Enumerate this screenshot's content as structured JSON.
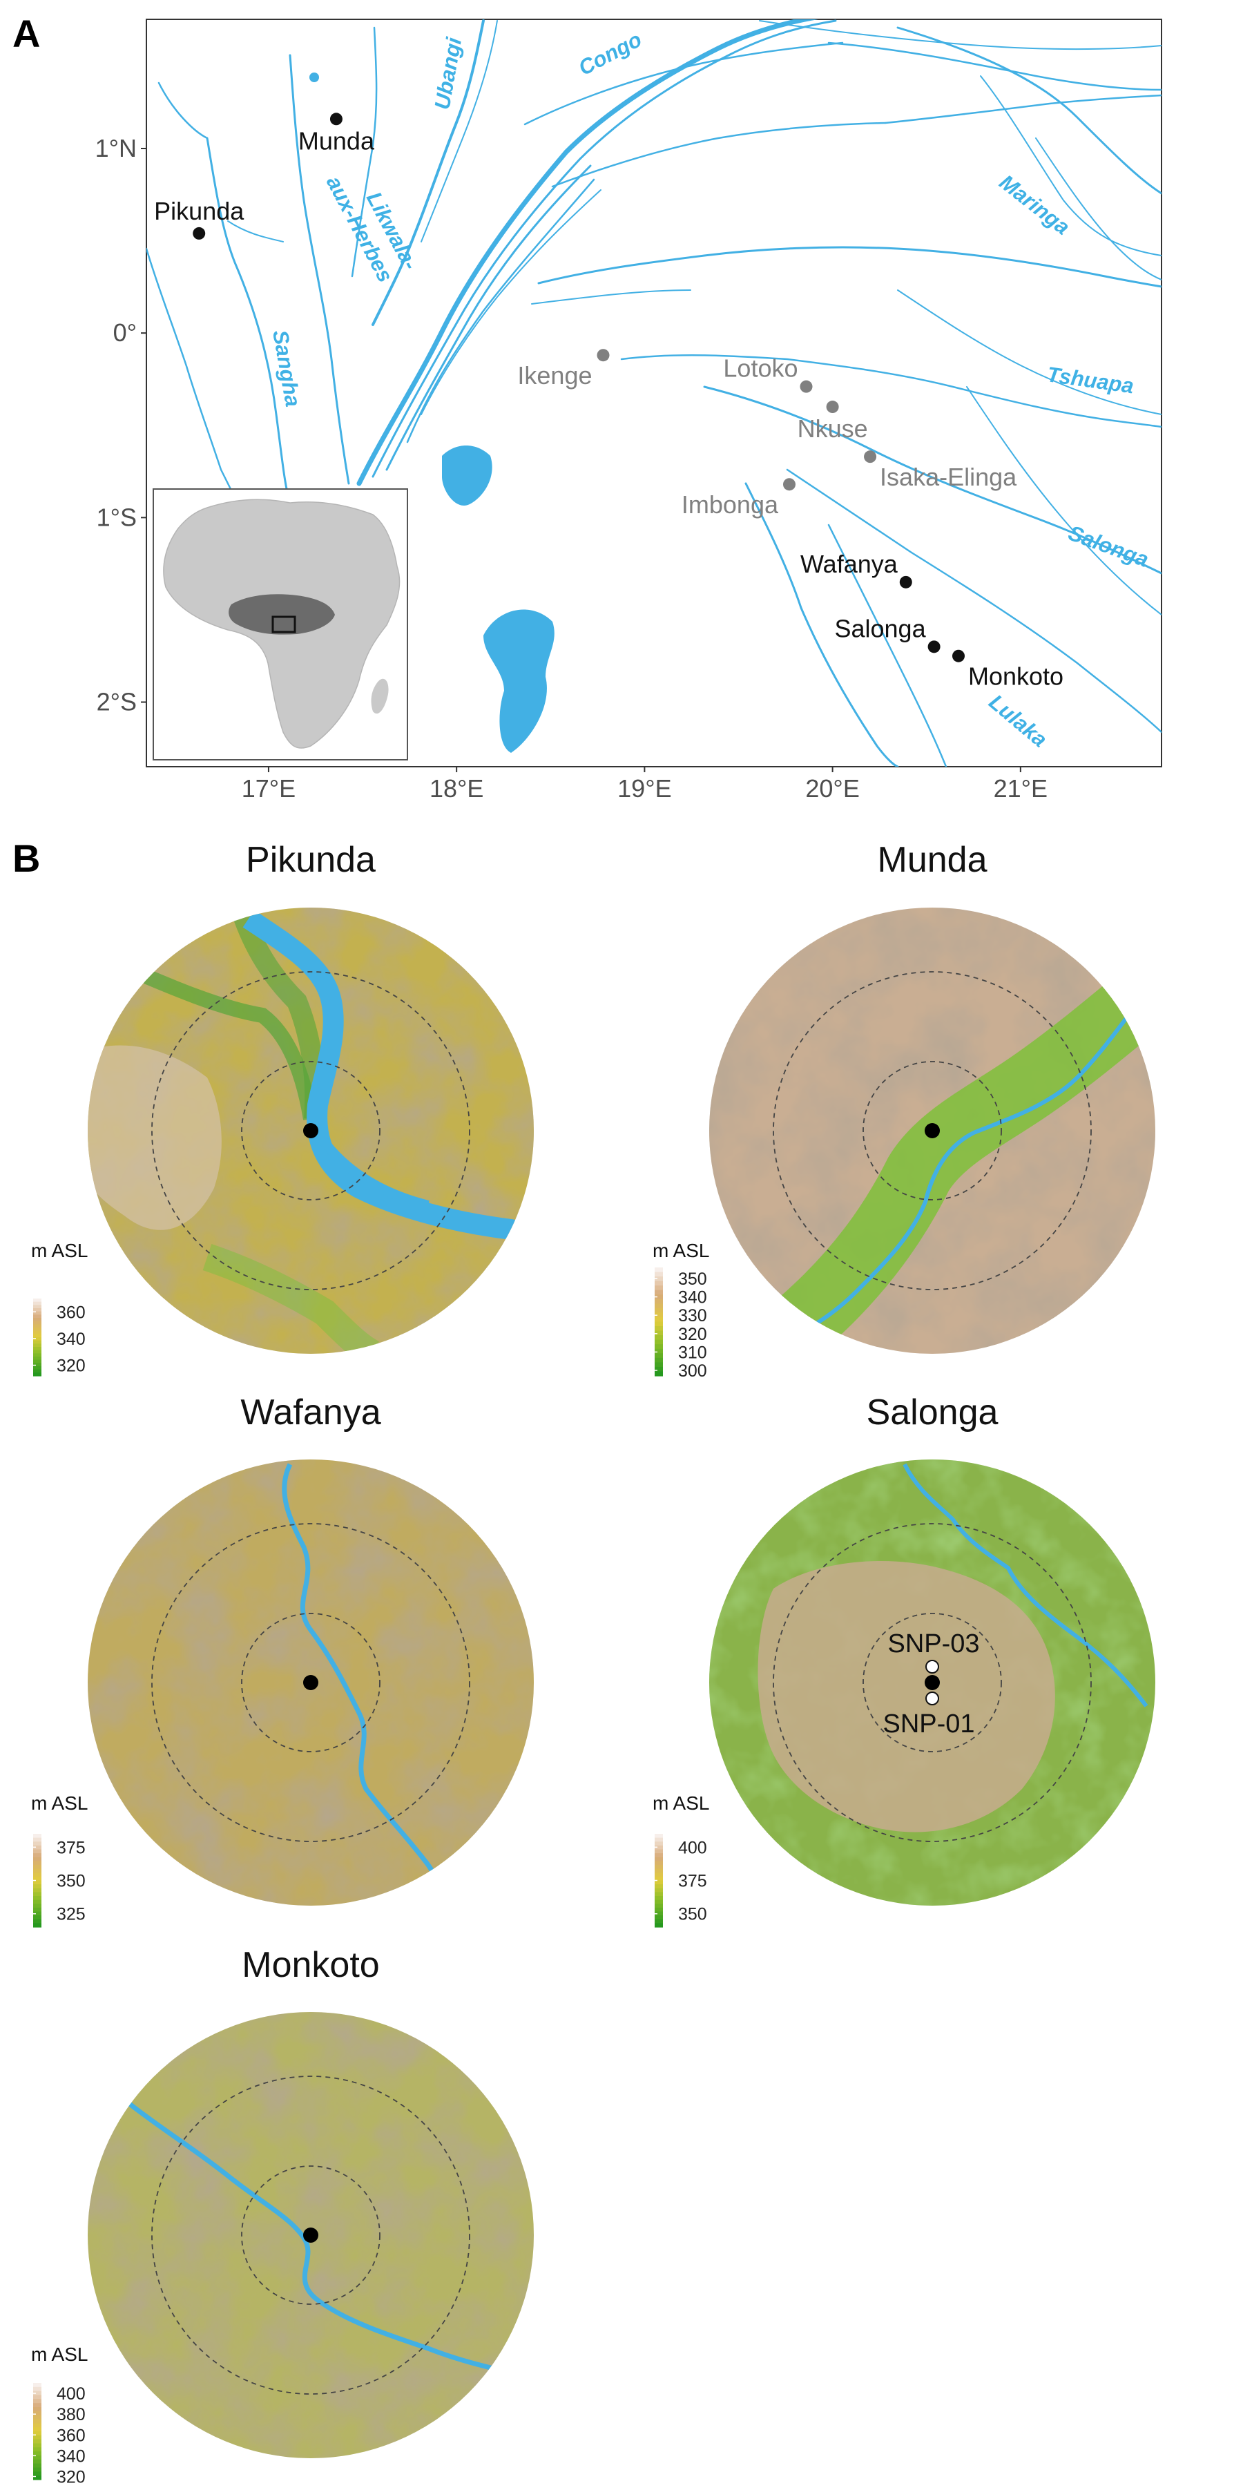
{
  "panel_a": {
    "label": "A",
    "lat_ticks": [
      {
        "value": 1,
        "label": "1°N"
      },
      {
        "value": 0,
        "label": "0°"
      },
      {
        "value": -1,
        "label": "1°S"
      },
      {
        "value": -2,
        "label": "2°S"
      }
    ],
    "lon_ticks": [
      {
        "value": 17,
        "label": "17°E"
      },
      {
        "value": 18,
        "label": "18°E"
      },
      {
        "value": 19,
        "label": "19°E"
      },
      {
        "value": 20,
        "label": "20°E"
      },
      {
        "value": 21,
        "label": "21°E"
      }
    ],
    "extent": {
      "lon": [
        16.35,
        21.75
      ],
      "lat": [
        -2.35,
        1.7
      ]
    },
    "sites": [
      {
        "name": "Munda",
        "lon": 17.36,
        "lat": 1.16,
        "color": "black",
        "anchor": "below"
      },
      {
        "name": "Pikunda",
        "lon": 16.63,
        "lat": 0.54,
        "color": "black",
        "anchor": "above"
      },
      {
        "name": "Ikenge",
        "lon": 18.78,
        "lat": -0.12,
        "color": "grey",
        "anchor": "below-left"
      },
      {
        "name": "Lotoko",
        "lon": 19.86,
        "lat": -0.29,
        "color": "grey",
        "anchor": "above-left"
      },
      {
        "name": "Nkuse",
        "lon": 20.0,
        "lat": -0.4,
        "color": "grey",
        "anchor": "below"
      },
      {
        "name": "Isaka-Elinga",
        "lon": 20.2,
        "lat": -0.67,
        "color": "grey",
        "anchor": "below-right"
      },
      {
        "name": "Imbonga",
        "lon": 19.77,
        "lat": -0.82,
        "color": "grey",
        "anchor": "below-left"
      },
      {
        "name": "Wafanya",
        "lon": 20.39,
        "lat": -1.35,
        "color": "black",
        "anchor": "above-left"
      },
      {
        "name": "Salonga",
        "lon": 20.54,
        "lat": -1.7,
        "color": "black",
        "anchor": "above-left"
      },
      {
        "name": "Monkoto",
        "lon": 20.67,
        "lat": -1.75,
        "color": "black",
        "anchor": "below-right"
      }
    ],
    "rivers": [
      {
        "name": "Ubangi",
        "rotate": -80
      },
      {
        "name": "Congo",
        "rotate": -28
      },
      {
        "name": "Likwala-",
        "rotate": 62
      },
      {
        "name": "aux-Herbes",
        "rotate": 62
      },
      {
        "name": "Sangha",
        "rotate": 80
      },
      {
        "name": "Maringa",
        "rotate": 38
      },
      {
        "name": "Tshuapa",
        "rotate": 8
      },
      {
        "name": "Salonga",
        "rotate": 20
      },
      {
        "name": "Lulaka",
        "rotate": 40
      }
    ],
    "colors": {
      "water": "#42b0e4",
      "site_black": "#111111",
      "site_grey": "#808080",
      "frame": "#333333"
    }
  },
  "panel_b": {
    "label": "B",
    "maps": [
      {
        "title": "Pikunda",
        "legend_title": "m ASL",
        "legend_labels": [
          "360",
          "340",
          "320"
        ],
        "legend_values": [
          360,
          340,
          320
        ],
        "legend_range": [
          312,
          370
        ],
        "markers": []
      },
      {
        "title": "Munda",
        "legend_title": "m ASL",
        "legend_labels": [
          "350",
          "340",
          "330",
          "320",
          "310",
          "300"
        ],
        "legend_values": [
          350,
          340,
          330,
          320,
          310,
          300
        ],
        "legend_range": [
          297,
          356
        ],
        "markers": []
      },
      {
        "title": "Wafanya",
        "legend_title": "m ASL",
        "legend_labels": [
          "375",
          "350",
          "325"
        ],
        "legend_values": [
          375,
          350,
          325
        ],
        "legend_range": [
          315,
          385
        ],
        "markers": []
      },
      {
        "title": "Salonga",
        "legend_title": "m ASL",
        "legend_labels": [
          "400",
          "375",
          "350"
        ],
        "legend_values": [
          400,
          375,
          350
        ],
        "legend_range": [
          340,
          410
        ],
        "markers": [
          {
            "label": "SNP-03",
            "fill": "white",
            "position": "north"
          },
          {
            "label": "SNP-01",
            "fill": "white",
            "position": "south"
          }
        ]
      },
      {
        "title": "Monkoto",
        "legend_title": "m ASL",
        "legend_labels": [
          "400",
          "380",
          "360",
          "340",
          "320"
        ],
        "legend_values": [
          400,
          380,
          360,
          340,
          320
        ],
        "legend_range": [
          317,
          410
        ],
        "markers": []
      }
    ]
  }
}
